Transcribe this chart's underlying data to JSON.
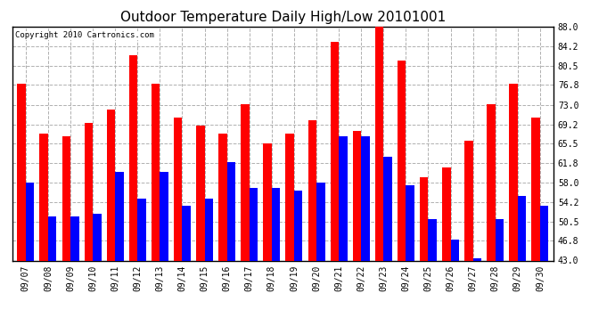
{
  "title": "Outdoor Temperature Daily High/Low 20101001",
  "copyright": "Copyright 2010 Cartronics.com",
  "dates": [
    "09/07",
    "09/08",
    "09/09",
    "09/10",
    "09/11",
    "09/12",
    "09/13",
    "09/14",
    "09/15",
    "09/16",
    "09/17",
    "09/18",
    "09/19",
    "09/20",
    "09/21",
    "09/22",
    "09/23",
    "09/24",
    "09/25",
    "09/26",
    "09/27",
    "09/28",
    "09/29",
    "09/30"
  ],
  "highs": [
    77.0,
    67.5,
    67.0,
    69.5,
    72.0,
    82.5,
    77.0,
    70.5,
    69.0,
    67.5,
    73.0,
    65.5,
    67.5,
    70.0,
    85.0,
    68.0,
    88.0,
    81.5,
    59.0,
    61.0,
    66.0,
    73.0,
    77.0,
    70.5
  ],
  "lows": [
    58.0,
    51.5,
    51.5,
    52.0,
    60.0,
    55.0,
    60.0,
    53.5,
    55.0,
    62.0,
    57.0,
    57.0,
    56.5,
    58.0,
    67.0,
    67.0,
    63.0,
    57.5,
    51.0,
    47.0,
    43.5,
    51.0,
    55.5,
    53.5
  ],
  "high_color": "#ff0000",
  "low_color": "#0000ff",
  "bg_color": "#ffffff",
  "grid_color": "#b0b0b0",
  "ymin": 43.0,
  "ymax": 88.0,
  "yticks": [
    43.0,
    46.8,
    50.5,
    54.2,
    58.0,
    61.8,
    65.5,
    69.2,
    73.0,
    76.8,
    80.5,
    84.2,
    88.0
  ],
  "bar_width": 0.38,
  "title_fontsize": 11,
  "tick_fontsize": 7,
  "copyright_fontsize": 6.5
}
